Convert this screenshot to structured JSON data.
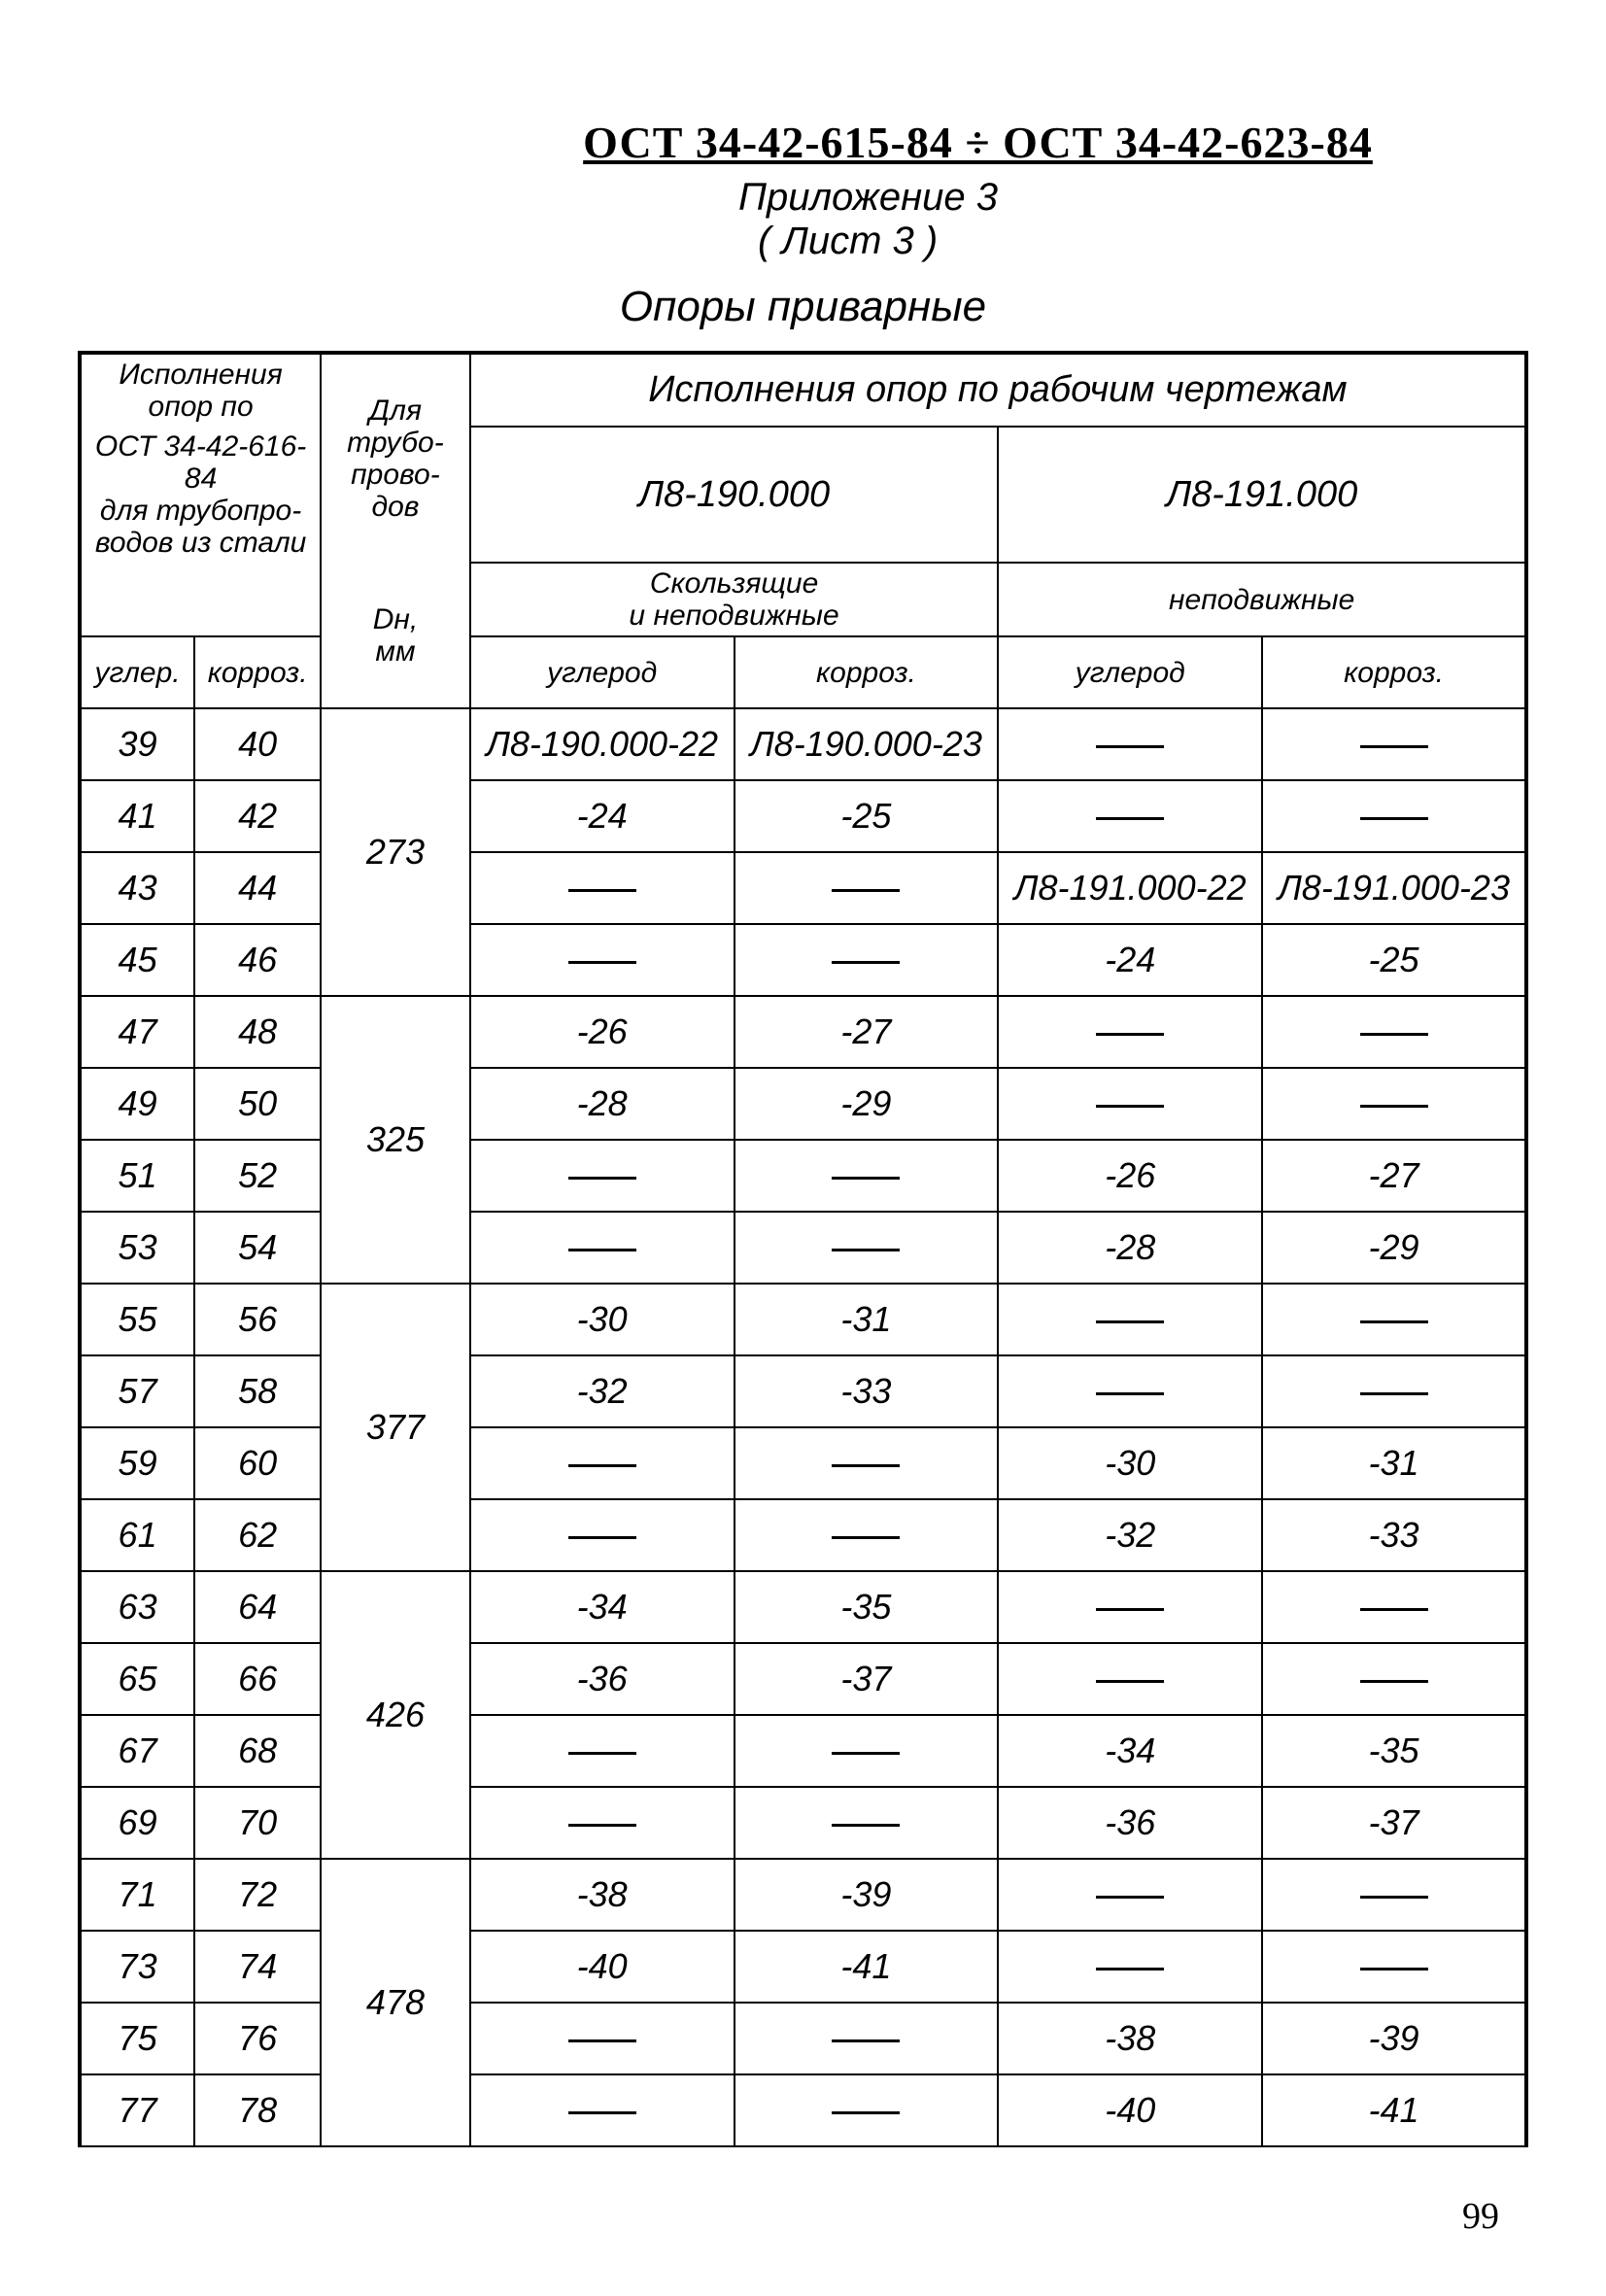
{
  "header": {
    "doc_number": "ОСТ 34-42-615-84 ÷ ОСТ 34-42-623-84",
    "appendix": "Приложение 3",
    "sheet": "( Лист 3 )"
  },
  "title": "Опоры приварные",
  "table": {
    "head": {
      "h1": "Исполнения опор по",
      "h1b": "ОСТ 34-42-616-84",
      "h1c": "для трубопро-",
      "h1d": "водов из стали",
      "h2a": "Для",
      "h2b": "трубо-",
      "h2c": "прово-",
      "h2d": "дов",
      "h2e": "Dн,",
      "h2f": "мм",
      "h3": "Исполнения опор по рабочим чертежам",
      "d1": "Л8-190.000",
      "d2": "Л8-191.000",
      "t1a": "Скользящие",
      "t1b": "и неподвижные",
      "t2": "неподвижные",
      "c1": "углер.",
      "c2": "корроз.",
      "c3": "углерод",
      "c4": "корроз.",
      "c5": "углерод",
      "c6": "корроз."
    },
    "groups": [
      {
        "dn": "273",
        "rows": [
          {
            "a": "39",
            "b": "40",
            "c": "Л8-190.000-22",
            "d": "Л8-190.000-23",
            "e": "—",
            "f": "—"
          },
          {
            "a": "41",
            "b": "42",
            "c": "-24",
            "d": "-25",
            "e": "—",
            "f": "—"
          },
          {
            "a": "43",
            "b": "44",
            "c": "—",
            "d": "—",
            "e": "Л8-191.000-22",
            "f": "Л8-191.000-23"
          },
          {
            "a": "45",
            "b": "46",
            "c": "—",
            "d": "—",
            "e": "-24",
            "f": "-25"
          }
        ]
      },
      {
        "dn": "325",
        "rows": [
          {
            "a": "47",
            "b": "48",
            "c": "-26",
            "d": "-27",
            "e": "—",
            "f": "—"
          },
          {
            "a": "49",
            "b": "50",
            "c": "-28",
            "d": "-29",
            "e": "—",
            "f": "—"
          },
          {
            "a": "51",
            "b": "52",
            "c": "—",
            "d": "—",
            "e": "-26",
            "f": "-27"
          },
          {
            "a": "53",
            "b": "54",
            "c": "—",
            "d": "—",
            "e": "-28",
            "f": "-29"
          }
        ]
      },
      {
        "dn": "377",
        "rows": [
          {
            "a": "55",
            "b": "56",
            "c": "-30",
            "d": "-31",
            "e": "—",
            "f": "—"
          },
          {
            "a": "57",
            "b": "58",
            "c": "-32",
            "d": "-33",
            "e": "—",
            "f": "—"
          },
          {
            "a": "59",
            "b": "60",
            "c": "—",
            "d": "—",
            "e": "-30",
            "f": "-31"
          },
          {
            "a": "61",
            "b": "62",
            "c": "—",
            "d": "—",
            "e": "-32",
            "f": "-33"
          }
        ]
      },
      {
        "dn": "426",
        "rows": [
          {
            "a": "63",
            "b": "64",
            "c": "-34",
            "d": "-35",
            "e": "—",
            "f": "—"
          },
          {
            "a": "65",
            "b": "66",
            "c": "-36",
            "d": "-37",
            "e": "—",
            "f": "—"
          },
          {
            "a": "67",
            "b": "68",
            "c": "—",
            "d": "—",
            "e": "-34",
            "f": "-35"
          },
          {
            "a": "69",
            "b": "70",
            "c": "—",
            "d": "—",
            "e": "-36",
            "f": "-37"
          }
        ]
      },
      {
        "dn": "478",
        "rows": [
          {
            "a": "71",
            "b": "72",
            "c": "-38",
            "d": "-39",
            "e": "—",
            "f": "—"
          },
          {
            "a": "73",
            "b": "74",
            "c": "-40",
            "d": "-41",
            "e": "—",
            "f": "—"
          },
          {
            "a": "75",
            "b": "76",
            "c": "—",
            "d": "—",
            "e": "-38",
            "f": "-39"
          },
          {
            "a": "77",
            "b": "78",
            "c": "—",
            "d": "—",
            "e": "-40",
            "f": "-41"
          }
        ]
      }
    ]
  },
  "page_number": "99"
}
